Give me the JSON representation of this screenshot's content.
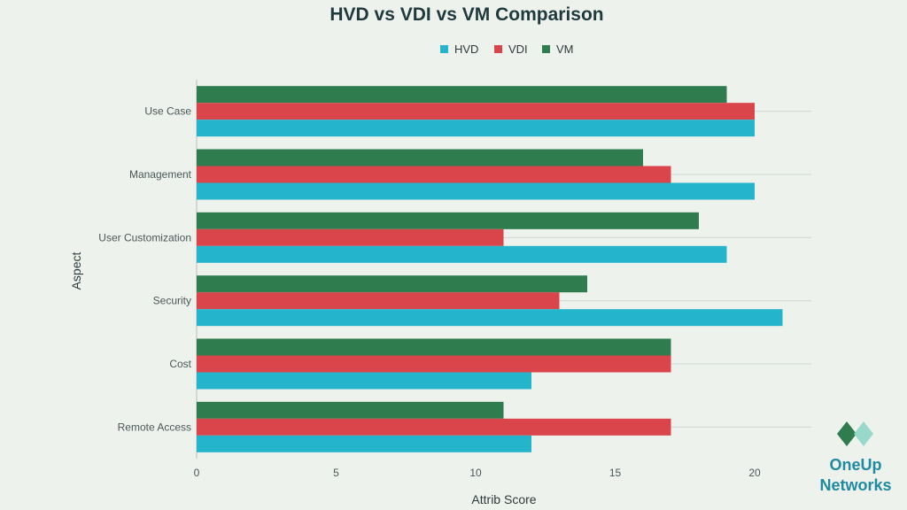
{
  "chart_data": {
    "type": "bar",
    "orientation": "horizontal",
    "title": "HVD vs VDI vs VM Comparison",
    "xlabel": "Attrib Score",
    "ylabel": "Aspect",
    "xlim": [
      0,
      22
    ],
    "xticks": [
      0,
      5,
      10,
      15,
      20
    ],
    "grid": true,
    "legend_position": "top-center",
    "categories": [
      "Use Case",
      "Management",
      "User Customization",
      "Security",
      "Cost",
      "Remote Access"
    ],
    "series": [
      {
        "name": "HVD",
        "color": "#24b5cc",
        "values": [
          20,
          20,
          19,
          21,
          12,
          12
        ]
      },
      {
        "name": "VDI",
        "color": "#d9454a",
        "values": [
          20,
          17,
          11,
          13,
          17,
          17
        ]
      },
      {
        "name": "VM",
        "color": "#2f7d4e",
        "values": [
          19,
          16,
          18,
          14,
          17,
          11
        ]
      }
    ]
  },
  "brand": {
    "line1": "OneUp",
    "line2": "Networks",
    "icon": "diamond-logo-icon",
    "colors": [
      "#2f7d4e",
      "#8fd6c8"
    ]
  }
}
